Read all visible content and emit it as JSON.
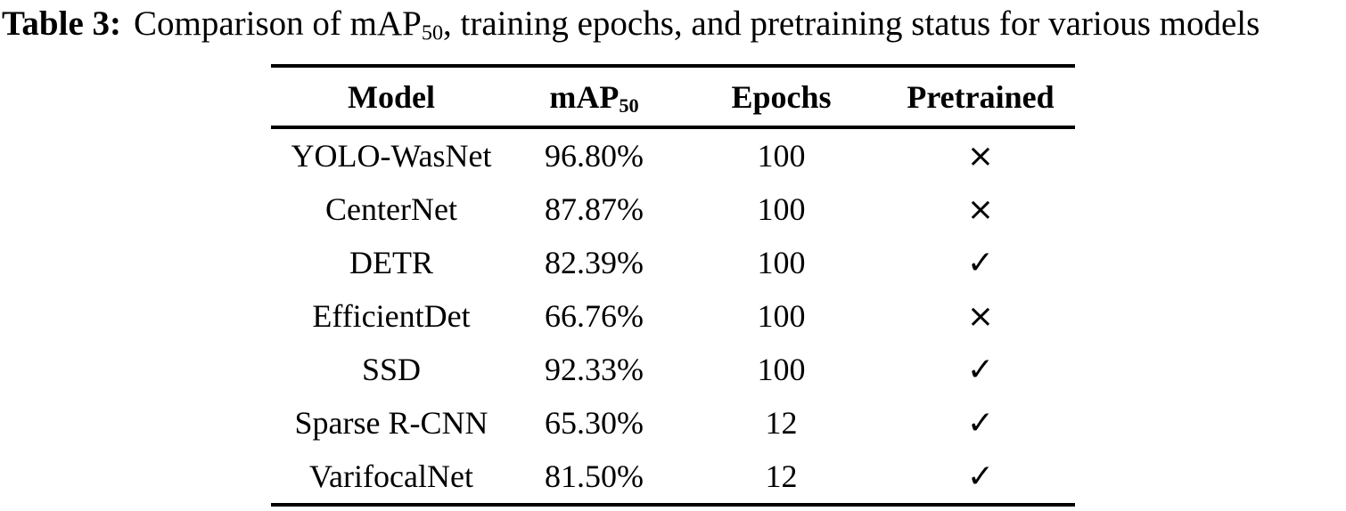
{
  "caption": {
    "label": "Table 3:",
    "before_sub": "Comparison of mAP",
    "sub": "50",
    "after_sub": ", training epochs, and pretraining status for various models"
  },
  "table": {
    "headers": {
      "model": "Model",
      "map_base": "mAP",
      "map_sub": "50",
      "epochs": "Epochs",
      "pretrained": "Pretrained"
    },
    "rows": [
      {
        "model": "YOLO-WasNet",
        "map50": "96.80%",
        "epochs": "100",
        "pretrained": "×"
      },
      {
        "model": "CenterNet",
        "map50": "87.87%",
        "epochs": "100",
        "pretrained": "×"
      },
      {
        "model": "DETR",
        "map50": "82.39%",
        "epochs": "100",
        "pretrained": "✓"
      },
      {
        "model": "EfficientDet",
        "map50": "66.76%",
        "epochs": "100",
        "pretrained": "×"
      },
      {
        "model": "SSD",
        "map50": "92.33%",
        "epochs": "100",
        "pretrained": "✓"
      },
      {
        "model": "Sparse R-CNN",
        "map50": "65.30%",
        "epochs": "12",
        "pretrained": "✓"
      },
      {
        "model": "VarifocalNet",
        "map50": "81.50%",
        "epochs": "12",
        "pretrained": "✓"
      }
    ]
  },
  "icons": {
    "check": "check-mark",
    "cross": "cross-mark"
  },
  "colors": {
    "text": "#000000",
    "background": "#ffffff",
    "rule": "#000000"
  }
}
